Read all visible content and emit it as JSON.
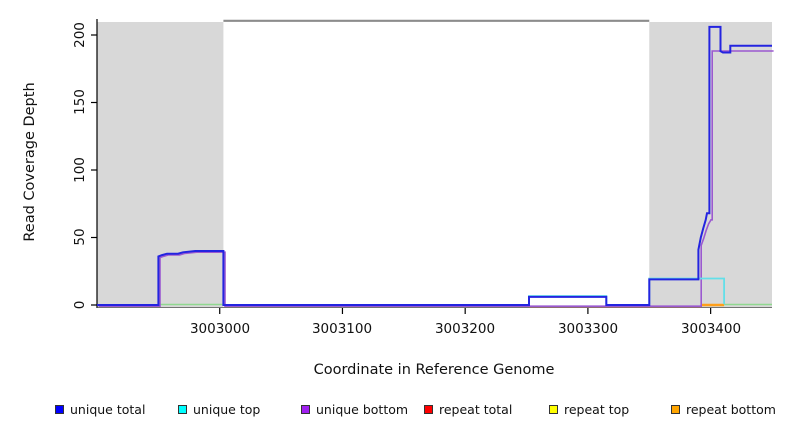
{
  "chart_data": {
    "type": "line",
    "title": "",
    "xlabel": "Coordinate in Reference Genome",
    "ylabel": "Read Coverage Depth",
    "xlim": [
      3002900,
      3003450
    ],
    "ylim": [
      0,
      212
    ],
    "grid": false,
    "xticks": [
      3003000,
      3003100,
      3003200,
      3003300,
      3003400
    ],
    "xtick_labels": [
      "3003000",
      "3003100",
      "3003200",
      "3003300",
      "3003400"
    ],
    "yticks": [
      0,
      50,
      100,
      150,
      200
    ],
    "ytick_labels": [
      "0",
      "50",
      "100",
      "150",
      "200"
    ],
    "shaded_regions": [
      {
        "x0": 3002900,
        "x1": 3003003,
        "color": "#d8d8d8"
      },
      {
        "x0": 3003350,
        "x1": 3003450,
        "color": "#d8d8d8"
      }
    ],
    "region_line": {
      "x0": 3003003,
      "x1": 3003350,
      "color": "#8c8c8c"
    },
    "series": [
      {
        "name": "unique total",
        "legend_color": "#0000ff",
        "rendered_color": "#2424e0",
        "points": [
          [
            3002900,
            0
          ],
          [
            3002950,
            0
          ],
          [
            3002950,
            36
          ],
          [
            3002953,
            37
          ],
          [
            3002957,
            38
          ],
          [
            3002966,
            38
          ],
          [
            3002970,
            39
          ],
          [
            3002980,
            40
          ],
          [
            3003003,
            40
          ],
          [
            3003003,
            0
          ],
          [
            3003252,
            0
          ],
          [
            3003252,
            6
          ],
          [
            3003315,
            6
          ],
          [
            3003315,
            0
          ],
          [
            3003350,
            0
          ],
          [
            3003350,
            19
          ],
          [
            3003390,
            19
          ],
          [
            3003390,
            41
          ],
          [
            3003392,
            50
          ],
          [
            3003394,
            57
          ],
          [
            3003396,
            63
          ],
          [
            3003397,
            68
          ],
          [
            3003399,
            68
          ],
          [
            3003399,
            206
          ],
          [
            3003408,
            206
          ],
          [
            3003408,
            188
          ],
          [
            3003410,
            187
          ],
          [
            3003416,
            187
          ],
          [
            3003416,
            192
          ],
          [
            3003450,
            192
          ]
        ]
      },
      {
        "name": "unique top",
        "legend_color": "#00ffff",
        "rendered_color": "#63dfe9",
        "points": [
          [
            3003252,
            0
          ],
          [
            3003252,
            6
          ],
          [
            3003315,
            6
          ],
          [
            3003315,
            0
          ],
          null,
          [
            3003350,
            0
          ],
          [
            3003350,
            19
          ],
          [
            3003411,
            19
          ],
          [
            3003411,
            0
          ]
        ]
      },
      {
        "name": "unique bottom",
        "legend_color": "#a020f0",
        "rendered_color": "#9b59d0",
        "points": [
          [
            3002900,
            0
          ],
          [
            3002950,
            0
          ],
          [
            3002950,
            36
          ],
          [
            3002953,
            37
          ],
          [
            3002957,
            38
          ],
          [
            3002966,
            38
          ],
          [
            3002970,
            39
          ],
          [
            3002980,
            40
          ],
          [
            3003003,
            40
          ],
          [
            3003003,
            0
          ],
          [
            3003391,
            0
          ],
          [
            3003391,
            45
          ],
          [
            3003393,
            50
          ],
          [
            3003395,
            56
          ],
          [
            3003397,
            61
          ],
          [
            3003399,
            64
          ],
          [
            3003400,
            64
          ],
          [
            3003400,
            189
          ],
          [
            3003450,
            189
          ]
        ]
      },
      {
        "name": "repeat total",
        "legend_color": "#ff0000",
        "rendered_color": "#e05868",
        "points": [
          [
            3003252,
            0
          ],
          [
            3003392,
            0
          ]
        ]
      },
      {
        "name": "repeat top",
        "legend_color": "#ffff00",
        "rendered_color": "#90d890",
        "points": [
          [
            3002950,
            0
          ],
          [
            3003003,
            0
          ],
          null,
          [
            3003411,
            0
          ],
          [
            3003450,
            0
          ]
        ]
      },
      {
        "name": "repeat bottom",
        "legend_color": "#ffa500",
        "rendered_color": "#ff9f1a",
        "points": [
          [
            3003392,
            0
          ],
          [
            3003411,
            0
          ]
        ]
      }
    ]
  },
  "legend": {
    "items": [
      {
        "label": "unique total",
        "color": "#0000ff"
      },
      {
        "label": "unique top",
        "color": "#00ffff"
      },
      {
        "label": "unique bottom",
        "color": "#a020f0"
      },
      {
        "label": "repeat total",
        "color": "#ff0000"
      },
      {
        "label": "repeat top",
        "color": "#ffff00"
      },
      {
        "label": "repeat bottom",
        "color": "#ffa500"
      }
    ]
  }
}
